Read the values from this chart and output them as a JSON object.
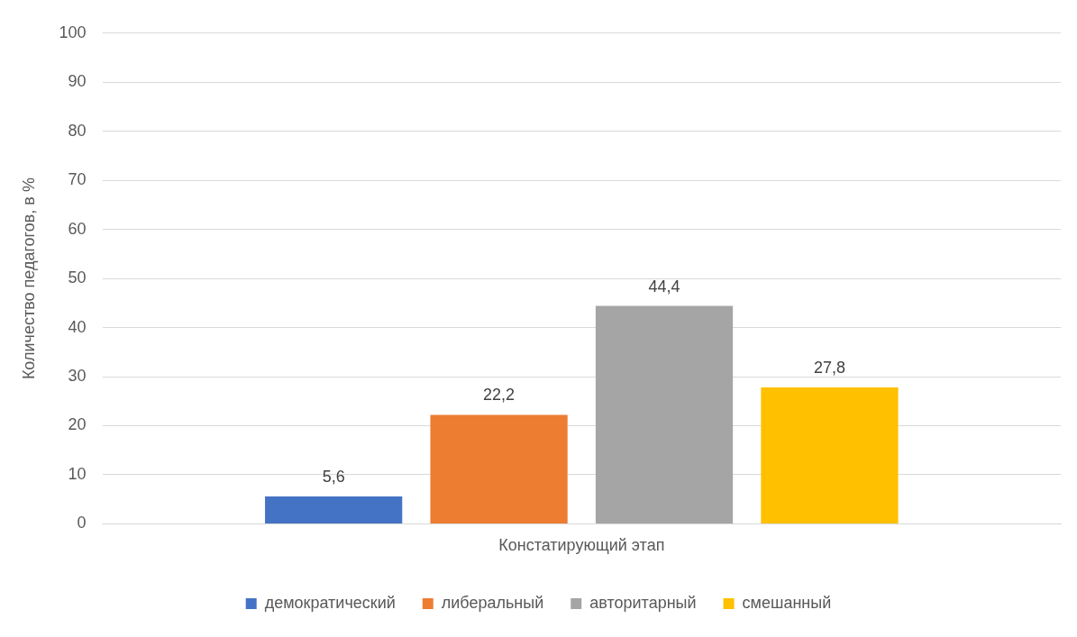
{
  "chart_data": {
    "type": "bar",
    "categories": [
      "Констатирующий этап"
    ],
    "series": [
      {
        "name": "демократический",
        "color": "#4472c4",
        "values": [
          5.6
        ],
        "value_labels": [
          "5,6"
        ]
      },
      {
        "name": "либеральный",
        "color": "#ed7d31",
        "values": [
          22.2
        ],
        "value_labels": [
          "22,2"
        ]
      },
      {
        "name": "авторитарный",
        "color": "#a5a5a5",
        "values": [
          44.4
        ],
        "value_labels": [
          "44,4"
        ]
      },
      {
        "name": "смешанный",
        "color": "#ffc000",
        "values": [
          27.8
        ],
        "value_labels": [
          "27,8"
        ]
      }
    ],
    "ylabel": "Количество педагогов, в %",
    "ylim": [
      0,
      100
    ],
    "yticks": [
      0,
      10,
      20,
      30,
      40,
      50,
      60,
      70,
      80,
      90,
      100
    ],
    "grid": "y",
    "legend": "bottom"
  }
}
